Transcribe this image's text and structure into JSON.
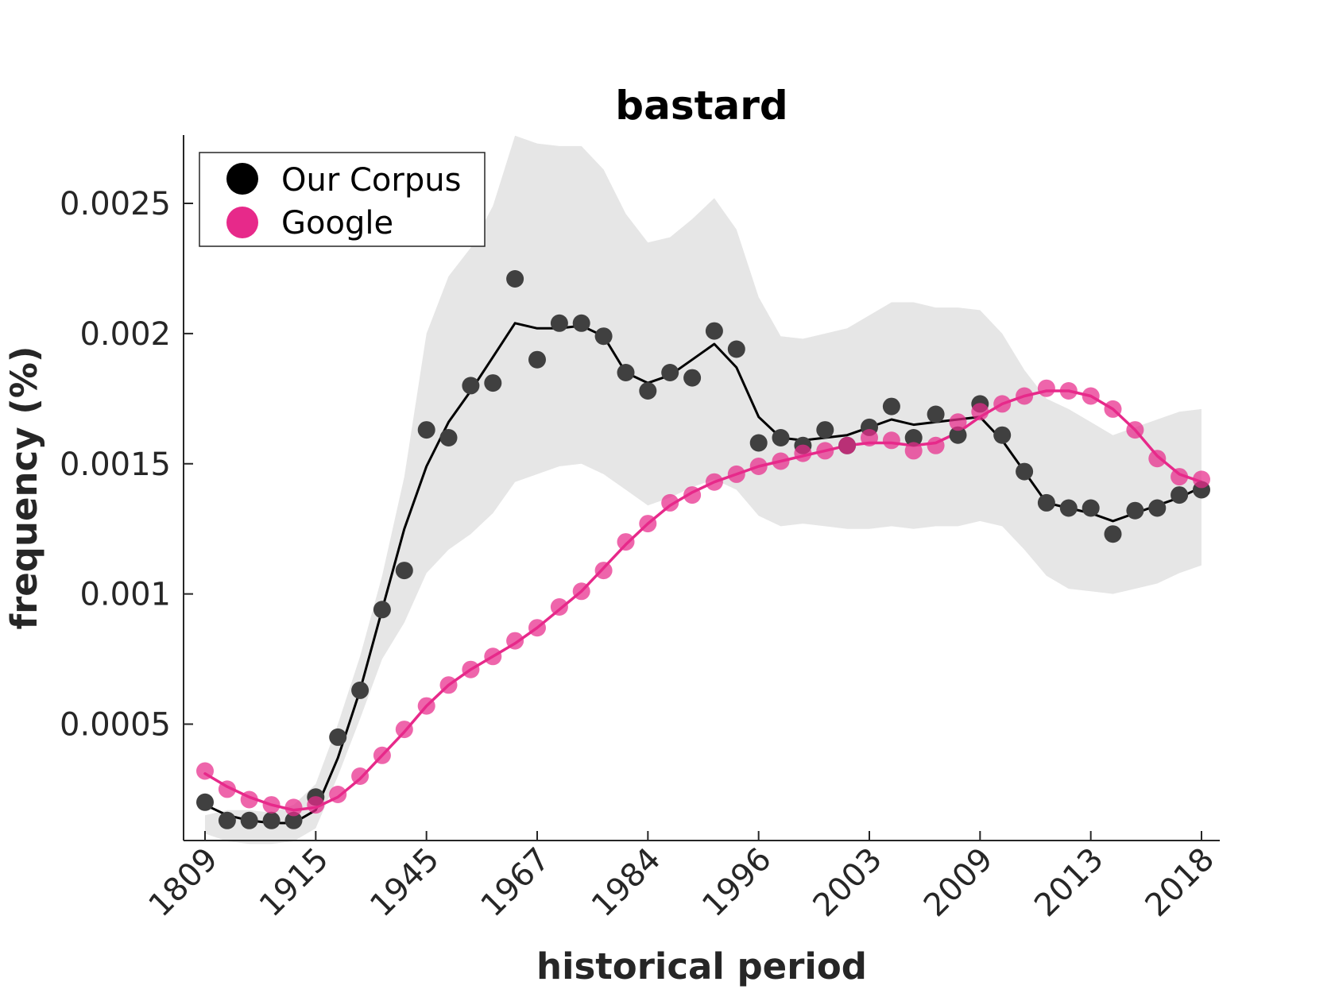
{
  "chart_data": {
    "type": "scatter",
    "title": "bastard",
    "xlabel": "historical period",
    "ylabel": "frequency (%)",
    "x_tick_labels": [
      "1809",
      "1915",
      "1945",
      "1967",
      "1984",
      "1996",
      "2003",
      "2009",
      "2013",
      "2018"
    ],
    "y_ticks": [
      0.0005,
      0.001,
      0.0015,
      0.002,
      0.0025
    ],
    "y_tick_labels": [
      "0.0005",
      "0.001",
      "0.0015",
      "0.002",
      "0.0025"
    ],
    "ylim": [
      4e-05,
      0.00276
    ],
    "grid": false,
    "legend_position": "top-left",
    "x_index": [
      0,
      1,
      2,
      3,
      4,
      5,
      6,
      7,
      8,
      9,
      10,
      11,
      12,
      13,
      14,
      15,
      16,
      17,
      18,
      19,
      20,
      21,
      22,
      23,
      24,
      25,
      26,
      27,
      28,
      29,
      30,
      31,
      32,
      33,
      34,
      35,
      36,
      37,
      38,
      39,
      40,
      41,
      42,
      43,
      44,
      45
    ],
    "series": [
      {
        "name": "Our Corpus",
        "color": "#000000",
        "marker_color": "#404040",
        "points": [
          0.0002,
          0.00013,
          0.00013,
          0.00013,
          0.00013,
          0.00022,
          0.00045,
          0.00063,
          0.00094,
          0.00109,
          0.00163,
          0.0016,
          0.0018,
          0.00181,
          0.00221,
          0.0019,
          0.00204,
          0.00204,
          0.00199,
          0.00185,
          0.00178,
          0.00185,
          0.00183,
          0.00201,
          0.00194,
          0.00158,
          0.0016,
          0.00157,
          0.00163,
          0.00157,
          0.00164,
          0.00172,
          0.0016,
          0.00169,
          0.00161,
          0.00173,
          0.00161,
          0.00147,
          0.00135,
          0.00133,
          0.00133,
          0.00123,
          0.00132,
          0.00133,
          0.00138,
          0.0014
        ],
        "trend": [
          0.00019,
          0.00015,
          0.00013,
          0.00012,
          0.00012,
          0.00017,
          0.00037,
          0.00063,
          0.00094,
          0.00125,
          0.00149,
          0.00166,
          0.00178,
          0.00191,
          0.00204,
          0.00202,
          0.00202,
          0.00203,
          0.00199,
          0.00185,
          0.00181,
          0.00184,
          0.0019,
          0.00196,
          0.00187,
          0.00168,
          0.0016,
          0.00159,
          0.0016,
          0.00161,
          0.00164,
          0.00167,
          0.00165,
          0.00166,
          0.00167,
          0.00168,
          0.00159,
          0.00147,
          0.00135,
          0.00133,
          0.00131,
          0.00128,
          0.00131,
          0.00134,
          0.00137,
          0.00141
        ],
        "band_upper": [
          0.00015,
          0.00017,
          0.00017,
          0.00016,
          0.00019,
          0.00027,
          0.0005,
          0.00076,
          0.00107,
          0.00145,
          0.002,
          0.00222,
          0.00233,
          0.00249,
          0.00276,
          0.00273,
          0.00272,
          0.00272,
          0.00263,
          0.00246,
          0.00235,
          0.00237,
          0.00244,
          0.00252,
          0.0024,
          0.00214,
          0.00199,
          0.00198,
          0.002,
          0.00202,
          0.00207,
          0.00212,
          0.00212,
          0.0021,
          0.0021,
          0.00209,
          0.002,
          0.00186,
          0.00175,
          0.00171,
          0.00166,
          0.00161,
          0.00164,
          0.00167,
          0.0017,
          0.00171
        ],
        "band_lower": [
          8e-05,
          5e-05,
          4e-05,
          4e-05,
          5e-05,
          0.0001,
          0.0003,
          0.00052,
          0.00075,
          0.00089,
          0.00108,
          0.00117,
          0.00123,
          0.00131,
          0.00143,
          0.00146,
          0.00149,
          0.0015,
          0.00146,
          0.0014,
          0.00134,
          0.00137,
          0.00141,
          0.00144,
          0.0014,
          0.0013,
          0.00126,
          0.00127,
          0.00126,
          0.00125,
          0.00125,
          0.00126,
          0.00125,
          0.00126,
          0.00126,
          0.00128,
          0.00126,
          0.00117,
          0.00107,
          0.00102,
          0.00101,
          0.001,
          0.00102,
          0.00104,
          0.00108,
          0.00111
        ]
      },
      {
        "name": "Google",
        "color": "#e7298a",
        "points": [
          0.00032,
          0.00025,
          0.00021,
          0.00019,
          0.00018,
          0.00019,
          0.00023,
          0.0003,
          0.00038,
          0.00048,
          0.00057,
          0.00065,
          0.00071,
          0.00076,
          0.00082,
          0.00087,
          0.00095,
          0.00101,
          0.00109,
          0.0012,
          0.00127,
          0.00135,
          0.00138,
          0.00143,
          0.00146,
          0.00149,
          0.00151,
          0.00154,
          0.00155,
          0.00157,
          0.0016,
          0.00159,
          0.00155,
          0.00157,
          0.00166,
          0.0017,
          0.00173,
          0.00176,
          0.00179,
          0.00178,
          0.00176,
          0.00171,
          0.00163,
          0.00152,
          0.00145,
          0.00144
        ],
        "trend": [
          0.00031,
          0.00026,
          0.00022,
          0.00019,
          0.00017,
          0.00018,
          0.00022,
          0.00029,
          0.00038,
          0.00047,
          0.00057,
          0.00065,
          0.00071,
          0.00076,
          0.00081,
          0.00087,
          0.00094,
          0.00101,
          0.0011,
          0.00119,
          0.00127,
          0.00134,
          0.00139,
          0.00143,
          0.00146,
          0.00149,
          0.00151,
          0.00153,
          0.00155,
          0.00157,
          0.00158,
          0.00158,
          0.00157,
          0.00158,
          0.00162,
          0.00168,
          0.00173,
          0.00176,
          0.00178,
          0.00178,
          0.00176,
          0.00171,
          0.00163,
          0.00153,
          0.00146,
          0.00143
        ]
      }
    ]
  }
}
